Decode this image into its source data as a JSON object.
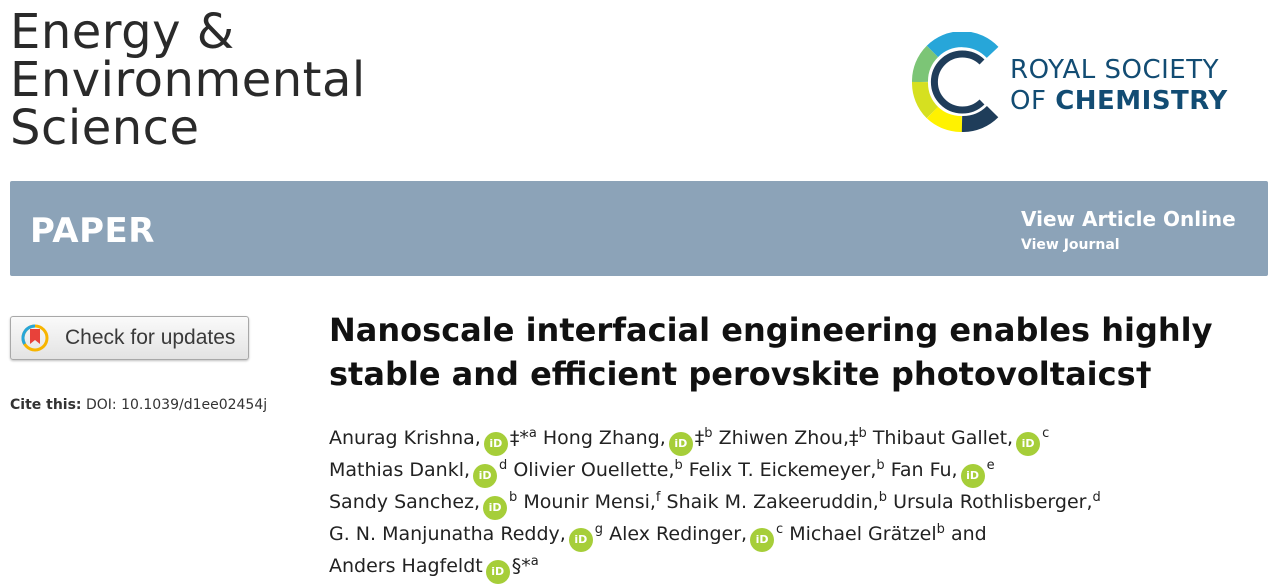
{
  "journal": {
    "line1": "Energy &",
    "line2": "Environmental",
    "line3": "Science"
  },
  "publisher": {
    "line1": "ROYAL SOCIETY",
    "line2_prefix": "OF ",
    "line2_bold": "CHEMISTRY"
  },
  "banner": {
    "label": "PAPER",
    "view_online": "View Article Online",
    "view_journal": "View Journal"
  },
  "check_updates": {
    "label": "Check for updates"
  },
  "cite": {
    "label": "Cite this:",
    "doi": "DOI: 10.1039/d1ee02454j"
  },
  "orcid_badge": "iD",
  "title": "Nanoscale interfacial engineering enables highly stable and efficient perovskite photovoltaics†",
  "authors": [
    {
      "name": "Anurag Krishna,",
      "orcid": true,
      "mark": "‡*",
      "sup": "a"
    },
    {
      "name": "Hong Zhang,",
      "orcid": true,
      "mark": "‡",
      "sup": "b"
    },
    {
      "name": "Zhiwen Zhou,",
      "orcid": false,
      "mark": "‡",
      "sup": "b"
    },
    {
      "name": "Thibaut Gallet,",
      "orcid": true,
      "mark": "",
      "sup": "c"
    },
    {
      "name": "Mathias Dankl,",
      "orcid": true,
      "mark": "",
      "sup": "d"
    },
    {
      "name": "Olivier Ouellette,",
      "orcid": false,
      "mark": "",
      "sup": "b"
    },
    {
      "name": "Felix T. Eickemeyer,",
      "orcid": false,
      "mark": "",
      "sup": "b"
    },
    {
      "name": "Fan Fu,",
      "orcid": true,
      "mark": "",
      "sup": "e"
    },
    {
      "name": "Sandy Sanchez,",
      "orcid": true,
      "mark": "",
      "sup": "b"
    },
    {
      "name": "Mounir Mensi,",
      "orcid": false,
      "mark": "",
      "sup": "f"
    },
    {
      "name": "Shaik M. Zakeeruddin,",
      "orcid": false,
      "mark": "",
      "sup": "b"
    },
    {
      "name": "Ursula Rothlisberger,",
      "orcid": false,
      "mark": "",
      "sup": "d"
    },
    {
      "name": "G. N. Manjunatha Reddy,",
      "orcid": true,
      "mark": "",
      "sup": "g"
    },
    {
      "name": "Alex Redinger,",
      "orcid": true,
      "mark": "",
      "sup": "c"
    },
    {
      "name": "Michael Grätzel",
      "orcid": false,
      "mark": "",
      "sup": "b"
    },
    {
      "name": "and",
      "orcid": false,
      "mark": "",
      "sup": ""
    },
    {
      "name": "Anders Hagfeldt",
      "orcid": true,
      "mark": "§*",
      "sup": "a"
    }
  ],
  "colors": {
    "banner": "#8ca3b8",
    "orcid": "#a6ce39",
    "rsc_navy": "#124c73",
    "rsc_logo": [
      "#1f3d5a",
      "#27a6d9",
      "#7cc576",
      "#d6e020",
      "#fff200"
    ]
  }
}
